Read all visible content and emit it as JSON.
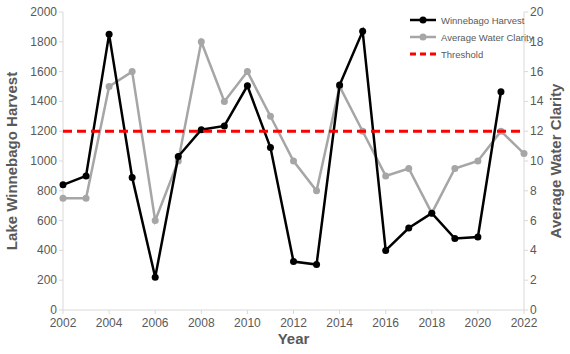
{
  "chart_data": {
    "type": "line",
    "x_label": "Year",
    "y_label": "Lake Winnebago Harvest",
    "y2_label": "Average Water Clarity",
    "x": [
      2002,
      2003,
      2004,
      2005,
      2006,
      2007,
      2008,
      2009,
      2010,
      2011,
      2012,
      2013,
      2014,
      2015,
      2016,
      2017,
      2018,
      2019,
      2020,
      2021,
      2022
    ],
    "xlim": [
      2002,
      2022
    ],
    "xticks": [
      2002,
      2004,
      2006,
      2008,
      2010,
      2012,
      2014,
      2016,
      2018,
      2020,
      2022
    ],
    "ylim": [
      0,
      2000
    ],
    "yticks": [
      0,
      200,
      400,
      600,
      800,
      1000,
      1200,
      1400,
      1600,
      1800,
      2000
    ],
    "y2lim": [
      0,
      20
    ],
    "y2ticks": [
      0,
      2,
      4,
      6,
      8,
      10,
      12,
      14,
      16,
      18,
      20
    ],
    "grid": false,
    "legend": "upper right",
    "series": [
      {
        "name": "Winnebago Harvest",
        "color": "#000000",
        "marker": "circle",
        "line_style": "solid",
        "values": [
          840,
          900,
          1850,
          890,
          220,
          1030,
          1210,
          1235,
          1505,
          1090,
          325,
          305,
          1510,
          1870,
          400,
          550,
          650,
          480,
          490,
          1465,
          null
        ]
      },
      {
        "name": "Average Water Clarity",
        "color": "#a6a6a6",
        "marker": "circle",
        "line_style": "solid",
        "axis": "y2",
        "values": [
          7.5,
          7.5,
          15,
          16,
          6,
          10,
          18,
          14,
          16,
          13,
          10,
          8,
          15,
          12,
          9,
          9.5,
          6.5,
          9.5,
          10,
          12,
          10.5
        ]
      },
      {
        "name": "Threshold",
        "color": "#ff0000",
        "marker": "none",
        "line_style": "dashed",
        "values": [
          1200,
          1200,
          1200,
          1200,
          1200,
          1200,
          1200,
          1200,
          1200,
          1200,
          1200,
          1200,
          1200,
          1200,
          1200,
          1200,
          1200,
          1200,
          1200,
          1200,
          1200
        ]
      }
    ]
  }
}
